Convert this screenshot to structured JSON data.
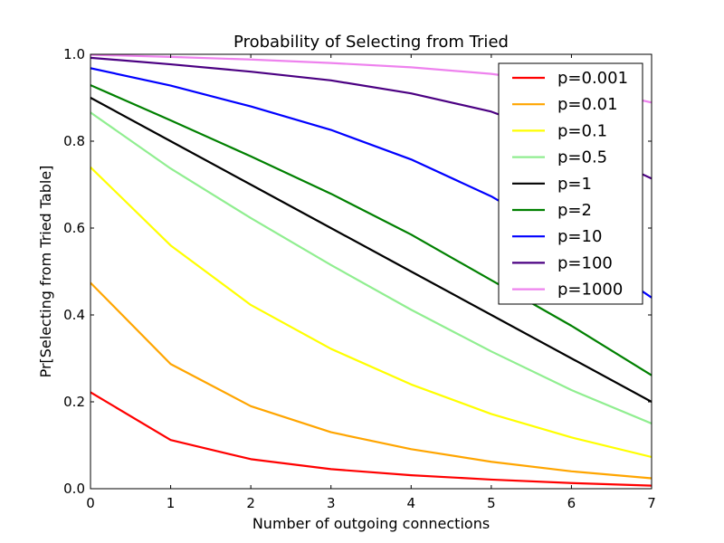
{
  "chart_data": {
    "type": "line",
    "title": "Probability of Selecting from Tried",
    "xlabel": "Number of outgoing connections",
    "ylabel": "Pr[Selecting from Tried Table]",
    "xlim": [
      0,
      7
    ],
    "ylim": [
      0,
      1.0
    ],
    "x": [
      0,
      1,
      2,
      3,
      4,
      5,
      6,
      7
    ],
    "x_ticks": [
      "0",
      "1",
      "2",
      "3",
      "4",
      "5",
      "6",
      "7"
    ],
    "y_ticks": [
      0.0,
      0.2,
      0.4,
      0.6,
      0.8,
      1.0
    ],
    "y_tick_labels": [
      "0.0",
      "0.2",
      "0.4",
      "0.6",
      "0.8",
      "1.0"
    ],
    "grid": false,
    "legend_position": "top-right",
    "series": [
      {
        "name": "p=0.001",
        "color": "#ff0000",
        "values": [
          0.222,
          0.112,
          0.068,
          0.045,
          0.031,
          0.021,
          0.013,
          0.007
        ]
      },
      {
        "name": "p=0.01",
        "color": "#ffa500",
        "values": [
          0.474,
          0.287,
          0.19,
          0.13,
          0.091,
          0.062,
          0.04,
          0.024
        ]
      },
      {
        "name": "p=0.1",
        "color": "#ffff00",
        "values": [
          0.74,
          0.56,
          0.423,
          0.322,
          0.24,
          0.172,
          0.118,
          0.073
        ]
      },
      {
        "name": "p=0.5",
        "color": "#90ee90",
        "values": [
          0.866,
          0.737,
          0.623,
          0.515,
          0.412,
          0.316,
          0.227,
          0.15
        ]
      },
      {
        "name": "p=1",
        "color": "#000000",
        "values": [
          0.9,
          0.8,
          0.7,
          0.6,
          0.5,
          0.4,
          0.3,
          0.2
        ]
      },
      {
        "name": "p=2",
        "color": "#008000",
        "values": [
          0.929,
          0.848,
          0.765,
          0.679,
          0.585,
          0.48,
          0.375,
          0.261
        ]
      },
      {
        "name": "p=10",
        "color": "#0000ff",
        "values": [
          0.968,
          0.928,
          0.88,
          0.826,
          0.758,
          0.673,
          0.565,
          0.44
        ]
      },
      {
        "name": "p=100",
        "color": "#4b0082",
        "values": [
          0.992,
          0.977,
          0.96,
          0.94,
          0.91,
          0.868,
          0.8,
          0.714
        ]
      },
      {
        "name": "p=1000",
        "color": "#ee82ee",
        "values": [
          0.999,
          0.994,
          0.988,
          0.98,
          0.97,
          0.955,
          0.93,
          0.889
        ]
      }
    ]
  }
}
